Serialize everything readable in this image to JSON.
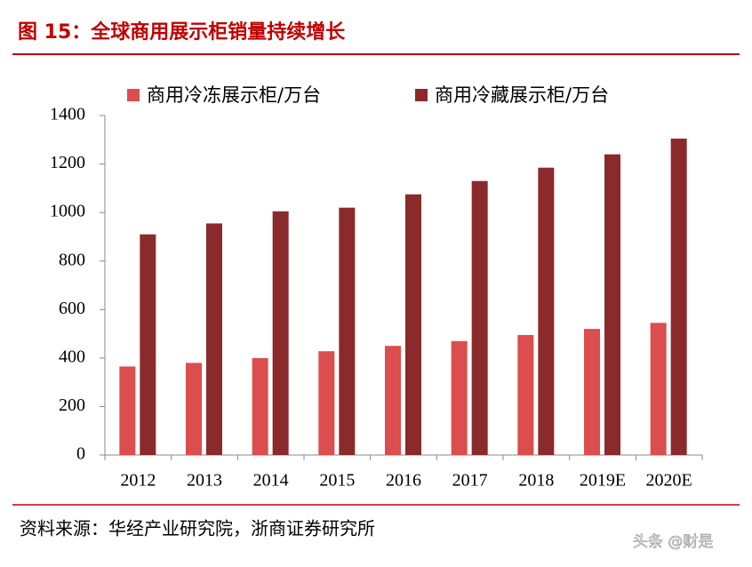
{
  "chart_data": {
    "type": "bar",
    "title": "图 15：全球商用展示柜销量持续增长",
    "categories": [
      "2012",
      "2013",
      "2014",
      "2015",
      "2016",
      "2017",
      "2018",
      "2019E",
      "2020E"
    ],
    "series": [
      {
        "name": "商用冷冻展示柜/万台",
        "color": "#dc4d4d",
        "values": [
          365,
          380,
          400,
          428,
          450,
          470,
          495,
          520,
          545
        ]
      },
      {
        "name": "商用冷藏展示柜/万台",
        "color": "#8b2a2a",
        "values": [
          910,
          955,
          1005,
          1020,
          1075,
          1130,
          1185,
          1240,
          1305
        ]
      }
    ],
    "ylim": [
      0,
      1400
    ],
    "yticks": [
      0,
      200,
      400,
      600,
      800,
      1000,
      1200,
      1400
    ],
    "legend": "top",
    "source": "资料来源：华经产业研究院，浙商证券研究所"
  },
  "watermark": "头条 @财是"
}
